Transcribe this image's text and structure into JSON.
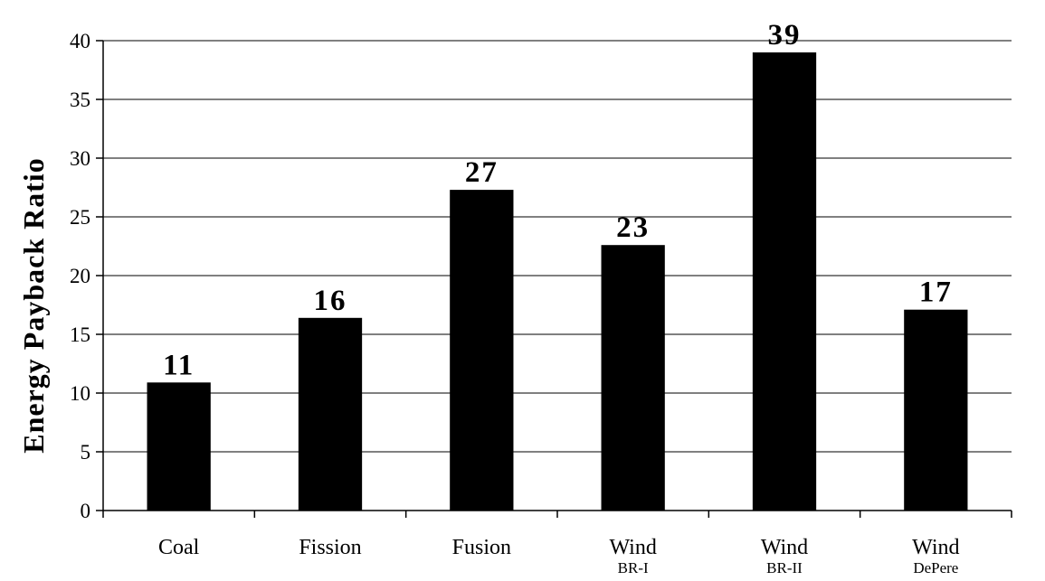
{
  "chart_data": {
    "type": "bar",
    "categories": [
      {
        "label": "Coal",
        "sublabel": ""
      },
      {
        "label": "Fission",
        "sublabel": ""
      },
      {
        "label": "Fusion",
        "sublabel": ""
      },
      {
        "label": "Wind",
        "sublabel": "BR-I"
      },
      {
        "label": "Wind",
        "sublabel": "BR-II"
      },
      {
        "label": "Wind",
        "sublabel": "DePere"
      }
    ],
    "values": [
      10.9,
      16.4,
      27.3,
      22.6,
      39.0,
      17.1
    ],
    "data_labels": [
      "11",
      "16",
      "27",
      "23",
      "39",
      "17"
    ],
    "title": "",
    "xlabel": "",
    "ylabel": "Energy Payback Ratio",
    "ylim": [
      0,
      40
    ],
    "yticks": [
      0,
      5,
      10,
      15,
      20,
      25,
      30,
      35,
      40
    ],
    "grid": true,
    "bar_color": "#000000",
    "legend": "none"
  }
}
